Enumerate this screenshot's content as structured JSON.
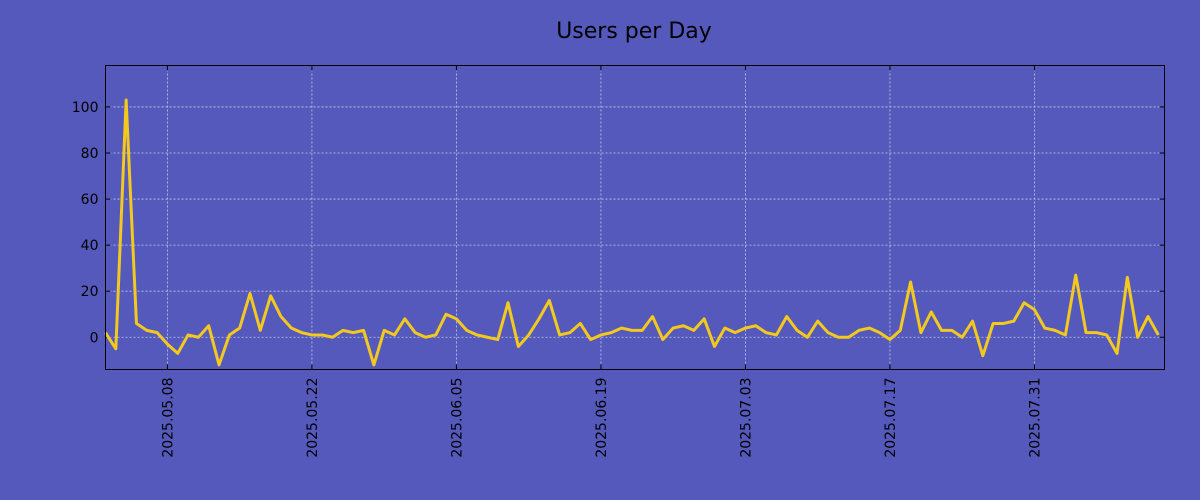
{
  "chart_data": {
    "type": "line",
    "title": "Users per Day",
    "xlabel": "",
    "ylabel": "",
    "grid": true,
    "ylim": [
      -14,
      118
    ],
    "start_date": "2025-05-02",
    "xlim_days": [
      0,
      102.6
    ],
    "x_tick_labels": [
      "2025.05.08",
      "2025.05.22",
      "2025.06.05",
      "2025.06.19",
      "2025.07.03",
      "2025.07.17",
      "2025.07.31"
    ],
    "x_tick_days": [
      6,
      20,
      34,
      48,
      62,
      76,
      90
    ],
    "y_ticks": [
      0,
      20,
      40,
      60,
      80,
      100
    ],
    "series": [
      {
        "name": "Users",
        "color": "#f3c81f",
        "values": [
          2,
          -5,
          103,
          6,
          3,
          2,
          -3,
          -7,
          1,
          0,
          5,
          -12,
          1,
          4,
          19,
          3,
          18,
          9,
          4,
          2,
          1,
          1,
          0,
          3,
          2,
          3,
          -12,
          3,
          1,
          8,
          2,
          0,
          1,
          10,
          8,
          3,
          1,
          0,
          -1,
          15,
          -4,
          1,
          8,
          16,
          1,
          2,
          6,
          -1,
          1,
          2,
          4,
          3,
          3,
          9,
          -1,
          4,
          5,
          3,
          8,
          -4,
          4,
          2,
          4,
          5,
          2,
          1,
          9,
          3,
          0,
          7,
          2,
          0,
          0,
          3,
          4,
          2,
          -1,
          3,
          24,
          2,
          11,
          3,
          3,
          0,
          7,
          -8,
          6,
          6,
          7,
          15,
          12,
          4,
          3,
          1,
          27,
          2,
          2,
          1,
          -7,
          26,
          0,
          9,
          1
        ]
      }
    ]
  }
}
